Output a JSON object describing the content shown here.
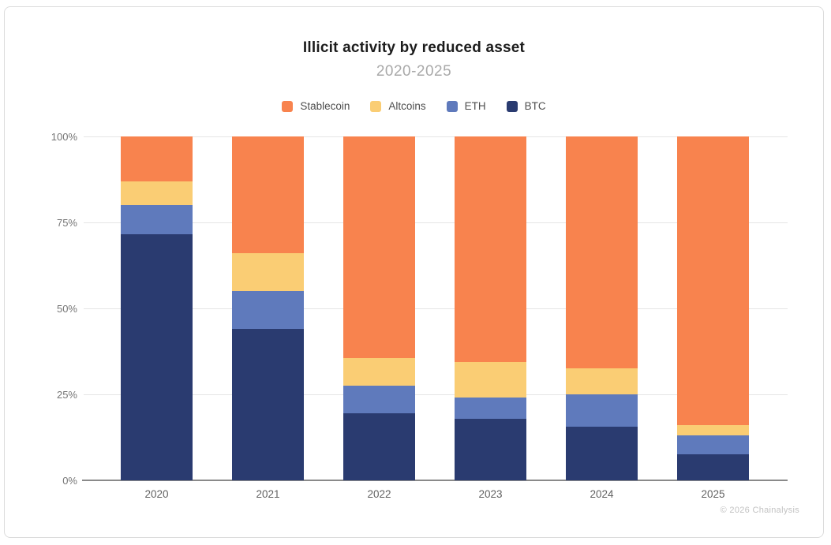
{
  "card": {
    "footer": "© 2026 Chainalysis"
  },
  "chart_data": {
    "type": "bar",
    "variant": "stacked-100-percent",
    "title": "Illicit activity by reduced asset",
    "subtitle": "2020-2025",
    "categories": [
      "2020",
      "2021",
      "2022",
      "2023",
      "2024",
      "2025"
    ],
    "series": [
      {
        "name": "Stablecoin",
        "color": "#F8834E",
        "values": [
          13,
          34,
          64.5,
          65.5,
          67.5,
          84
        ]
      },
      {
        "name": "Altcoins",
        "color": "#FACD74",
        "values": [
          7,
          11,
          8,
          10.5,
          7.5,
          3
        ]
      },
      {
        "name": "ETH",
        "color": "#5F7ABC",
        "values": [
          8.5,
          11,
          8,
          6,
          9.5,
          5.5
        ]
      },
      {
        "name": "BTC",
        "color": "#2A3B70",
        "values": [
          71.5,
          44,
          19.5,
          18,
          15.5,
          7.5
        ]
      }
    ],
    "xlabel": "",
    "ylabel": "",
    "yticks": [
      {
        "value": 0,
        "label": "0%"
      },
      {
        "value": 25,
        "label": "25%"
      },
      {
        "value": 50,
        "label": "50%"
      },
      {
        "value": 75,
        "label": "75%"
      },
      {
        "value": 100,
        "label": "100%"
      }
    ],
    "ylim": [
      0,
      100
    ],
    "grid": true,
    "legend_position": "top"
  }
}
